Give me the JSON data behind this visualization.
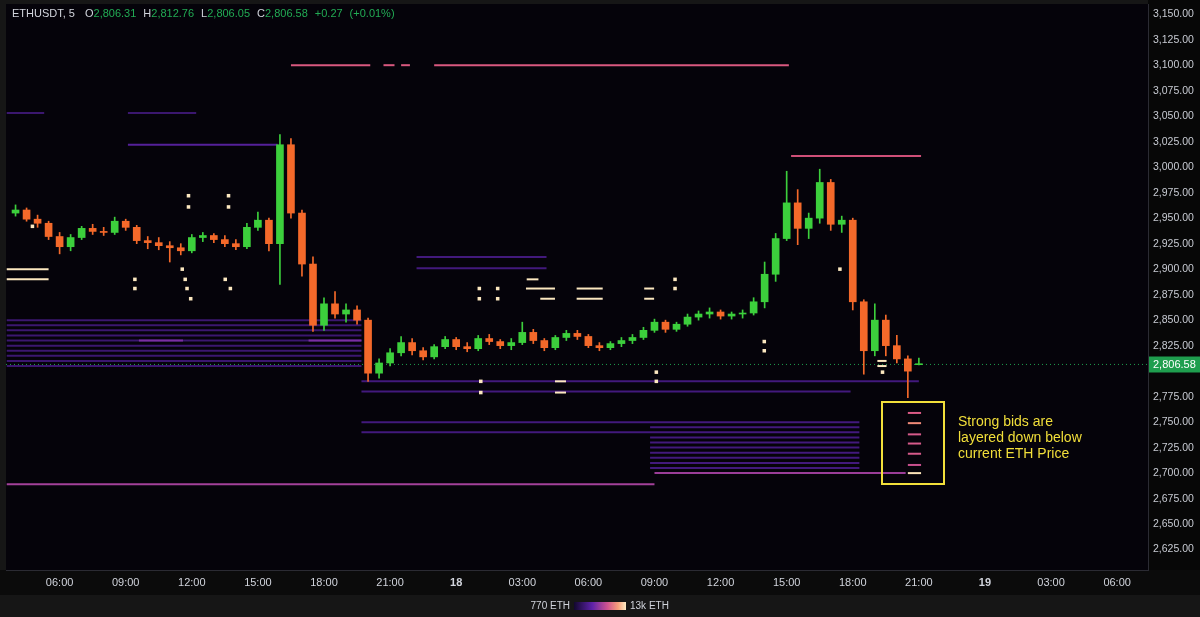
{
  "chart_data": {
    "type": "candlestick",
    "title": "ETHUSDT, 5",
    "subtitle": "O2,806.31 H2,812.76 L2,806.05 C2,806.58 +0.27 (+0.01%)",
    "x": [
      "--12-17T04:00",
      "--12-17T04:30",
      "--12-17T05:00",
      "--12-17T05:30",
      "--12-17T06:00",
      "--12-17T06:30",
      "--12-17T07:00",
      "--12-17T07:30",
      "--12-17T08:00",
      "--12-17T08:30",
      "--12-17T09:00",
      "--12-17T09:30",
      "--12-17T10:00",
      "--12-17T10:30",
      "--12-17T11:00",
      "--12-17T11:30",
      "--12-17T12:00",
      "--12-17T12:30",
      "--12-17T13:00",
      "--12-17T13:30",
      "--12-17T14:00",
      "--12-17T14:30",
      "--12-17T15:00",
      "--12-17T15:30",
      "--12-17T16:00",
      "--12-17T16:30",
      "--12-17T17:00",
      "--12-17T17:30",
      "--12-17T18:00",
      "--12-17T18:30",
      "--12-17T19:00",
      "--12-17T19:30",
      "--12-17T20:00",
      "--12-17T20:30",
      "--12-17T21:00",
      "--12-17T21:30",
      "--12-17T22:00",
      "--12-17T22:30",
      "--12-17T23:00",
      "--12-17T23:30",
      "--12-18T00:00",
      "--12-18T00:30",
      "--12-18T01:00",
      "--12-18T01:30",
      "--12-18T02:00",
      "--12-18T02:30",
      "--12-18T03:00",
      "--12-18T03:30",
      "--12-18T04:00",
      "--12-18T04:30",
      "--12-18T05:00",
      "--12-18T05:30",
      "--12-18T06:00",
      "--12-18T06:30",
      "--12-18T07:00",
      "--12-18T07:30",
      "--12-18T08:00",
      "--12-18T08:30",
      "--12-18T09:00",
      "--12-18T09:30",
      "--12-18T10:00",
      "--12-18T10:30",
      "--12-18T11:00",
      "--12-18T11:30",
      "--12-18T12:00",
      "--12-18T12:30",
      "--12-18T13:00",
      "--12-18T13:30",
      "--12-18T14:00",
      "--12-18T14:30",
      "--12-18T15:00",
      "--12-18T15:30",
      "--12-18T16:00",
      "--12-18T16:30",
      "--12-18T17:00",
      "--12-18T17:30",
      "--12-18T18:00",
      "--12-18T18:30",
      "--12-18T19:00",
      "--12-18T19:30",
      "--12-18T20:00",
      "--12-18T20:30",
      "--12-18T21:00"
    ],
    "ohlc": [
      [
        2955,
        2963,
        2952,
        2958
      ],
      [
        2958,
        2960,
        2947,
        2949
      ],
      [
        2949,
        2953,
        2941,
        2945
      ],
      [
        2945,
        2947,
        2929,
        2932
      ],
      [
        2932,
        2936,
        2915,
        2922
      ],
      [
        2922,
        2934,
        2918,
        2931
      ],
      [
        2931,
        2942,
        2929,
        2940
      ],
      [
        2940,
        2944,
        2934,
        2937
      ],
      [
        2937,
        2941,
        2933,
        2936
      ],
      [
        2936,
        2951,
        2934,
        2947
      ],
      [
        2947,
        2949,
        2938,
        2941
      ],
      [
        2941,
        2943,
        2925,
        2928
      ],
      [
        2928,
        2932,
        2920,
        2926
      ],
      [
        2926,
        2931,
        2919,
        2923
      ],
      [
        2923,
        2927,
        2907,
        2921
      ],
      [
        2921,
        2925,
        2914,
        2918
      ],
      [
        2918,
        2934,
        2916,
        2931
      ],
      [
        2931,
        2936,
        2927,
        2933
      ],
      [
        2933,
        2935,
        2926,
        2929
      ],
      [
        2929,
        2933,
        2922,
        2925
      ],
      [
        2925,
        2929,
        2919,
        2922
      ],
      [
        2922,
        2945,
        2920,
        2941
      ],
      [
        2941,
        2956,
        2938,
        2948
      ],
      [
        2948,
        2950,
        2918,
        2925
      ],
      [
        2925,
        3032,
        2885,
        3022
      ],
      [
        3022,
        3028,
        2950,
        2955
      ],
      [
        2955,
        2958,
        2893,
        2905
      ],
      [
        2905,
        2912,
        2839,
        2845
      ],
      [
        2845,
        2872,
        2840,
        2866
      ],
      [
        2866,
        2878,
        2852,
        2856
      ],
      [
        2856,
        2866,
        2848,
        2860
      ],
      [
        2860,
        2864,
        2846,
        2850
      ],
      [
        2850,
        2852,
        2790,
        2798
      ],
      [
        2798,
        2812,
        2793,
        2808
      ],
      [
        2808,
        2822,
        2805,
        2818
      ],
      [
        2818,
        2834,
        2815,
        2828
      ],
      [
        2828,
        2832,
        2816,
        2820
      ],
      [
        2820,
        2823,
        2811,
        2814
      ],
      [
        2814,
        2826,
        2812,
        2824
      ],
      [
        2824,
        2834,
        2822,
        2831
      ],
      [
        2831,
        2833,
        2821,
        2824
      ],
      [
        2824,
        2828,
        2819,
        2822
      ],
      [
        2822,
        2835,
        2820,
        2832
      ],
      [
        2832,
        2836,
        2826,
        2829
      ],
      [
        2829,
        2831,
        2822,
        2825
      ],
      [
        2825,
        2832,
        2821,
        2828
      ],
      [
        2828,
        2848,
        2826,
        2838
      ],
      [
        2838,
        2841,
        2827,
        2830
      ],
      [
        2830,
        2832,
        2820,
        2823
      ],
      [
        2823,
        2835,
        2821,
        2833
      ],
      [
        2833,
        2840,
        2830,
        2837
      ],
      [
        2837,
        2840,
        2831,
        2834
      ],
      [
        2834,
        2836,
        2823,
        2825
      ],
      [
        2825,
        2828,
        2820,
        2823
      ],
      [
        2823,
        2829,
        2821,
        2827
      ],
      [
        2827,
        2833,
        2824,
        2830
      ],
      [
        2830,
        2836,
        2827,
        2833
      ],
      [
        2833,
        2843,
        2831,
        2840
      ],
      [
        2840,
        2851,
        2838,
        2848
      ],
      [
        2848,
        2850,
        2838,
        2841
      ],
      [
        2841,
        2848,
        2839,
        2846
      ],
      [
        2846,
        2856,
        2844,
        2853
      ],
      [
        2853,
        2859,
        2850,
        2856
      ],
      [
        2856,
        2862,
        2852,
        2858
      ],
      [
        2858,
        2860,
        2851,
        2854
      ],
      [
        2854,
        2858,
        2851,
        2856
      ],
      [
        2856,
        2860,
        2852,
        2857
      ],
      [
        2857,
        2872,
        2855,
        2868
      ],
      [
        2868,
        2907,
        2862,
        2895
      ],
      [
        2895,
        2935,
        2888,
        2930
      ],
      [
        2930,
        2996,
        2928,
        2965
      ],
      [
        2965,
        2978,
        2924,
        2940
      ],
      [
        2940,
        2955,
        2930,
        2950
      ],
      [
        2950,
        2998,
        2945,
        2985
      ],
      [
        2985,
        2988,
        2938,
        2944
      ],
      [
        2944,
        2952,
        2936,
        2948
      ],
      [
        2948,
        2950,
        2860,
        2868
      ],
      [
        2868,
        2870,
        2797,
        2820
      ],
      [
        2820,
        2866,
        2815,
        2850
      ],
      [
        2850,
        2855,
        2815,
        2825
      ],
      [
        2825,
        2835,
        2808,
        2812
      ],
      [
        2812,
        2815,
        2774,
        2800
      ],
      [
        2806.31,
        2812.76,
        2806.05,
        2806.58
      ]
    ],
    "colors": [
      "#3ccf3c",
      "#f4692a",
      "#f4692a",
      "#f4692a",
      "#f4692a",
      "#3ccf3c",
      "#3ccf3c",
      "#f4692a",
      "#f4692a",
      "#3ccf3c",
      "#f4692a",
      "#f4692a",
      "#f4692a",
      "#f4692a",
      "#f4692a",
      "#f4692a",
      "#3ccf3c",
      "#3ccf3c",
      "#f4692a",
      "#f4692a",
      "#f4692a",
      "#3ccf3c",
      "#3ccf3c",
      "#f4692a",
      "#3ccf3c",
      "#f4692a",
      "#f4692a",
      "#f4692a",
      "#3ccf3c",
      "#f4692a",
      "#3ccf3c",
      "#f4692a",
      "#f4692a",
      "#3ccf3c",
      "#3ccf3c",
      "#3ccf3c",
      "#f4692a",
      "#f4692a",
      "#3ccf3c",
      "#3ccf3c",
      "#f4692a",
      "#f4692a",
      "#3ccf3c",
      "#f4692a",
      "#f4692a",
      "#3ccf3c",
      "#3ccf3c",
      "#f4692a",
      "#f4692a",
      "#3ccf3c",
      "#3ccf3c",
      "#f4692a",
      "#f4692a",
      "#f4692a",
      "#3ccf3c",
      "#3ccf3c",
      "#3ccf3c",
      "#3ccf3c",
      "#3ccf3c",
      "#f4692a",
      "#3ccf3c",
      "#3ccf3c",
      "#3ccf3c",
      "#3ccf3c",
      "#f4692a",
      "#3ccf3c",
      "#3ccf3c",
      "#3ccf3c",
      "#3ccf3c",
      "#3ccf3c",
      "#3ccf3c",
      "#f4692a",
      "#3ccf3c",
      "#3ccf3c",
      "#f4692a",
      "#3ccf3c",
      "#f4692a",
      "#f4692a",
      "#3ccf3c",
      "#f4692a",
      "#f4692a",
      "#f4692a",
      "#3ccf3c"
    ],
    "series": [
      {
        "type": "line",
        "x": [
          "--12-17T03:36",
          "--12-17T05:18"
        ],
        "values": [
          3053,
          3053
        ],
        "color": "#3b176f"
      },
      {
        "type": "line",
        "x": [
          "--12-17T09:06",
          "--12-17T12:12"
        ],
        "values": [
          3053,
          3053
        ],
        "color": "#3b176f"
      },
      {
        "type": "line",
        "x": [
          "--12-17T09:06",
          "--12-17T15:54"
        ],
        "values": [
          3022,
          3022
        ],
        "color": "#55209a"
      },
      {
        "type": "line",
        "x": [
          "--12-17T03:36",
          "--12-17T19:42"
        ],
        "values": [
          2850,
          2850
        ],
        "color": "#3b176f"
      },
      {
        "type": "line",
        "x": [
          "--12-17T03:36",
          "--12-17T19:42"
        ],
        "values": [
          2845,
          2845
        ],
        "color": "#3b176f"
      },
      {
        "type": "line",
        "x": [
          "--12-17T03:36",
          "--12-17T19:42"
        ],
        "values": [
          2840,
          2840
        ],
        "color": "#3b176f"
      },
      {
        "type": "line",
        "x": [
          "--12-17T03:36",
          "--12-17T19:42"
        ],
        "values": [
          2835,
          2835
        ],
        "color": "#3b176f"
      },
      {
        "type": "line",
        "x": [
          "--12-17T03:36",
          "--12-17T19:42"
        ],
        "values": [
          2830,
          2830
        ],
        "color": "#3b176f"
      },
      {
        "type": "line",
        "x": [
          "--12-17T03:36",
          "--12-17T19:42"
        ],
        "values": [
          2825,
          2825
        ],
        "color": "#3b176f"
      },
      {
        "type": "line",
        "x": [
          "--12-17T03:36",
          "--12-17T19:42"
        ],
        "values": [
          2820,
          2820
        ],
        "color": "#3b176f"
      },
      {
        "type": "line",
        "x": [
          "--12-17T03:36",
          "--12-17T19:42"
        ],
        "values": [
          2815,
          2815
        ],
        "color": "#3b176f"
      },
      {
        "type": "line",
        "x": [
          "--12-17T03:36",
          "--12-17T19:42"
        ],
        "values": [
          2810,
          2810
        ],
        "color": "#3b176f"
      },
      {
        "type": "line",
        "x": [
          "--12-17T03:36",
          "--12-17T19:42"
        ],
        "values": [
          2805,
          2805
        ],
        "color": "#3b176f"
      },
      {
        "type": "line",
        "x": [
          "--12-17T09:36",
          "--12-17T11:36"
        ],
        "values": [
          2830,
          2830
        ],
        "color": "#7b2fa1"
      },
      {
        "type": "line",
        "x": [
          "--12-17T17:18",
          "--12-17T19:42"
        ],
        "values": [
          2830,
          2830
        ],
        "color": "#7b2fa1"
      },
      {
        "type": "line",
        "x": [
          "--12-17T22:12",
          "--12-18T04:06"
        ],
        "values": [
          2912,
          2912
        ],
        "color": "#42197c"
      },
      {
        "type": "line",
        "x": [
          "--12-17T22:12",
          "--12-18T04:06"
        ],
        "values": [
          2901,
          2901
        ],
        "color": "#42197c"
      },
      {
        "type": "line",
        "x": [
          "--12-17T19:42",
          "--12-18T21:00"
        ],
        "values": [
          2790,
          2790
        ],
        "color": "#42197c"
      },
      {
        "type": "line",
        "x": [
          "--12-17T19:42",
          "--12-18T17:54"
        ],
        "values": [
          2780,
          2780
        ],
        "color": "#42197c"
      },
      {
        "type": "line",
        "x": [
          "--12-17T19:42",
          "--12-18T18:18"
        ],
        "values": [
          2750,
          2750
        ],
        "color": "#42197c"
      },
      {
        "type": "line",
        "x": [
          "--12-18T08:48",
          "--12-18T18:18"
        ],
        "values": [
          2745,
          2745
        ],
        "color": "#42197c"
      },
      {
        "type": "line",
        "x": [
          "--12-17T19:42",
          "--12-18T18:18"
        ],
        "values": [
          2740,
          2740
        ],
        "color": "#42197c"
      },
      {
        "type": "line",
        "x": [
          "--12-18T08:48",
          "--12-18T18:18"
        ],
        "values": [
          2735,
          2735
        ],
        "color": "#42197c"
      },
      {
        "type": "line",
        "x": [
          "--12-18T08:48",
          "--12-18T18:18"
        ],
        "values": [
          2730,
          2730
        ],
        "color": "#42197c"
      },
      {
        "type": "line",
        "x": [
          "--12-18T08:48",
          "--12-18T18:18"
        ],
        "values": [
          2725,
          2725
        ],
        "color": "#42197c"
      },
      {
        "type": "line",
        "x": [
          "--12-18T08:48",
          "--12-18T18:18"
        ],
        "values": [
          2720,
          2720
        ],
        "color": "#42197c"
      },
      {
        "type": "line",
        "x": [
          "--12-18T08:48",
          "--12-18T18:18"
        ],
        "values": [
          2715,
          2715
        ],
        "color": "#42197c"
      },
      {
        "type": "line",
        "x": [
          "--12-18T08:48",
          "--12-18T18:18"
        ],
        "values": [
          2710,
          2710
        ],
        "color": "#42197c"
      },
      {
        "type": "line",
        "x": [
          "--12-18T08:48",
          "--12-18T18:18"
        ],
        "values": [
          2705,
          2705
        ],
        "color": "#42197c"
      },
      {
        "type": "line",
        "x": [
          "--12-17T03:36",
          "--12-18T09:00"
        ],
        "values": [
          2689,
          2689
        ],
        "color": "#a3419a"
      },
      {
        "type": "line",
        "x": [
          "--12-18T09:00",
          "--12-18T20:24"
        ],
        "values": [
          2700,
          2700
        ],
        "color": "#9b3d98"
      },
      {
        "type": "line",
        "x": [
          "--12-17T16:30",
          "--12-17T20:06"
        ],
        "values": [
          3100,
          3100
        ],
        "color": "#d9587f"
      },
      {
        "type": "line",
        "x": [
          "--12-17T20:42",
          "--12-17T21:12"
        ],
        "values": [
          3100,
          3100
        ],
        "color": "#d9587f"
      },
      {
        "type": "line",
        "x": [
          "--12-17T21:30",
          "--12-17T21:54"
        ],
        "values": [
          3100,
          3100
        ],
        "color": "#d9587f"
      },
      {
        "type": "line",
        "x": [
          "--12-17T23:00",
          "--12-18T15:06"
        ],
        "values": [
          3100,
          3100
        ],
        "color": "#d9587f"
      },
      {
        "type": "line",
        "x": [
          "--12-18T15:12",
          "--12-18T21:06"
        ],
        "values": [
          3011,
          3011
        ],
        "color": "#cf4f78"
      },
      {
        "type": "line",
        "x": [
          "--12-18T20:30",
          "--12-18T21:06"
        ],
        "values": [
          2759,
          2759
        ],
        "color": "#db5a86"
      },
      {
        "type": "line",
        "x": [
          "--12-18T20:30",
          "--12-18T21:06"
        ],
        "values": [
          2749,
          2749
        ],
        "color": "#f08a78"
      },
      {
        "type": "line",
        "x": [
          "--12-18T20:30",
          "--12-18T21:06"
        ],
        "values": [
          2738,
          2738
        ],
        "color": "#d65a8a"
      },
      {
        "type": "line",
        "x": [
          "--12-18T20:30",
          "--12-18T21:06"
        ],
        "values": [
          2729,
          2729
        ],
        "color": "#d65a8a"
      },
      {
        "type": "line",
        "x": [
          "--12-18T20:30",
          "--12-18T21:06"
        ],
        "values": [
          2719,
          2719
        ],
        "color": "#d65a8a"
      },
      {
        "type": "line",
        "x": [
          "--12-18T20:30",
          "--12-18T21:06"
        ],
        "values": [
          2708,
          2708
        ],
        "color": "#c8508e"
      },
      {
        "type": "line",
        "x": [
          "--12-18T20:30",
          "--12-18T21:06"
        ],
        "values": [
          2700,
          2700
        ],
        "color": "#fbe3b8"
      },
      {
        "type": "line",
        "x": [
          "--12-17T03:36",
          "--12-17T05:30"
        ],
        "values": [
          2900,
          2900
        ],
        "color": "#fce8c0"
      },
      {
        "type": "line",
        "x": [
          "--12-17T03:36",
          "--12-17T05:30"
        ],
        "values": [
          2890,
          2890
        ],
        "color": "#fce8c0"
      },
      {
        "type": "line",
        "x": [
          "--12-18T03:12",
          "--12-18T03:44"
        ],
        "values": [
          2890,
          2890
        ],
        "color": "#fce8c0"
      },
      {
        "type": "line",
        "x": [
          "--12-18T03:10",
          "--12-18T04:29"
        ],
        "values": [
          2881,
          2881
        ],
        "color": "#fce8c0"
      },
      {
        "type": "line",
        "x": [
          "--12-18T05:28",
          "--12-18T06:39"
        ],
        "values": [
          2881,
          2881
        ],
        "color": "#fce8c0"
      },
      {
        "type": "line",
        "x": [
          "--12-18T08:32",
          "--12-18T08:59"
        ],
        "values": [
          2881,
          2881
        ],
        "color": "#fce8c0"
      },
      {
        "type": "line",
        "x": [
          "--12-18T03:49",
          "--12-18T04:29"
        ],
        "values": [
          2871,
          2871
        ],
        "color": "#fce8c0"
      },
      {
        "type": "line",
        "x": [
          "--12-18T05:28",
          "--12-18T06:39"
        ],
        "values": [
          2871,
          2871
        ],
        "color": "#fce8c0"
      },
      {
        "type": "line",
        "x": [
          "--12-18T08:32",
          "--12-18T08:59"
        ],
        "values": [
          2871,
          2871
        ],
        "color": "#fce8c0"
      },
      {
        "type": "line",
        "x": [
          "--12-18T04:29",
          "--12-18T04:59"
        ],
        "values": [
          2790,
          2790
        ],
        "color": "#fce8c0"
      },
      {
        "type": "line",
        "x": [
          "--12-18T04:29",
          "--12-18T04:59"
        ],
        "values": [
          2779,
          2779
        ],
        "color": "#fce8c0"
      },
      {
        "type": "line",
        "x": [
          "--12-18T19:07",
          "--12-18T19:32"
        ],
        "values": [
          2810,
          2810
        ],
        "color": "#fce8c0"
      },
      {
        "type": "line",
        "x": [
          "--12-18T19:07",
          "--12-18T19:32"
        ],
        "values": [
          2805,
          2805
        ],
        "color": "#fce8c0"
      },
      {
        "type": "scatter",
        "marker": "square",
        "color": "#fce8c0",
        "x": [
          "--12-17T04:46",
          "--12-17T09:25",
          "--12-17T09:25",
          "--12-17T11:34",
          "--12-17T11:42",
          "--12-17T11:47",
          "--12-17T11:51",
          "--12-17T11:51",
          "--12-17T11:57",
          "--12-17T13:31",
          "--12-17T13:40",
          "--12-17T13:40",
          "--12-17T13:45",
          "--12-18T01:03",
          "--12-18T01:03",
          "--12-18T01:07",
          "--12-18T01:07",
          "--12-18T01:53",
          "--12-18T01:53",
          "--12-18T09:05",
          "--12-18T09:05",
          "--12-18T09:56",
          "--12-18T09:56",
          "--12-18T13:59",
          "--12-18T13:59",
          "--12-18T17:25",
          "--12-18T19:21"
        ],
        "values": [
          2942,
          2890,
          2881,
          2900,
          2890,
          2881,
          2972,
          2961,
          2871,
          2890,
          2972,
          2961,
          2881,
          2881,
          2871,
          2790,
          2779,
          2881,
          2871,
          2799,
          2790,
          2890,
          2881,
          2829,
          2820,
          2900,
          2799
        ]
      }
    ],
    "xlim": [
      "--12-17T03:34",
      "--12-19T07:24"
    ],
    "xticks": [
      {
        "value": "--12-17T06:00",
        "label": "06:00"
      },
      {
        "value": "--12-17T09:00",
        "label": "09:00"
      },
      {
        "value": "--12-17T12:00",
        "label": "12:00"
      },
      {
        "value": "--12-17T15:00",
        "label": "15:00"
      },
      {
        "value": "--12-17T18:00",
        "label": "18:00"
      },
      {
        "value": "--12-17T21:00",
        "label": "21:00"
      },
      {
        "value": "--12-18T00:00",
        "label": "18"
      },
      {
        "value": "--12-18T03:00",
        "label": "03:00"
      },
      {
        "value": "--12-18T06:00",
        "label": "06:00"
      },
      {
        "value": "--12-18T09:00",
        "label": "09:00"
      },
      {
        "value": "--12-18T12:00",
        "label": "12:00"
      },
      {
        "value": "--12-18T15:00",
        "label": "15:00"
      },
      {
        "value": "--12-18T18:00",
        "label": "18:00"
      },
      {
        "value": "--12-18T21:00",
        "label": "21:00"
      },
      {
        "value": "--12-19T00:00",
        "label": "19"
      },
      {
        "value": "--12-19T03:00",
        "label": "03:00"
      },
      {
        "value": "--12-19T06:00",
        "label": "06:00"
      }
    ],
    "ylim": [
      2605,
      3160
    ],
    "yticks": [
      {
        "value": 2625,
        "label": "2,625.00"
      },
      {
        "value": 2650,
        "label": "2,650.00"
      },
      {
        "value": 2675,
        "label": "2,675.00"
      },
      {
        "value": 2700,
        "label": "2,700.00"
      },
      {
        "value": 2725,
        "label": "2,725.00"
      },
      {
        "value": 2750,
        "label": "2,750.00"
      },
      {
        "value": 2775,
        "label": "2,775.00"
      },
      {
        "value": 2825,
        "label": "2,825.00"
      },
      {
        "value": 2850,
        "label": "2,850.00"
      },
      {
        "value": 2875,
        "label": "2,875.00"
      },
      {
        "value": 2900,
        "label": "2,900.00"
      },
      {
        "value": 2925,
        "label": "2,925.00"
      },
      {
        "value": 2950,
        "label": "2,950.00"
      },
      {
        "value": 2975,
        "label": "2,975.00"
      },
      {
        "value": 3000,
        "label": "3,000.00"
      },
      {
        "value": 3025,
        "label": "3,025.00"
      },
      {
        "value": 3050,
        "label": "3,050.00"
      },
      {
        "value": 3075,
        "label": "3,075.00"
      },
      {
        "value": 3100,
        "label": "3,100.00"
      },
      {
        "value": 3125,
        "label": "3,125.00"
      },
      {
        "value": 3150,
        "label": "3,150.00"
      }
    ],
    "ref_lines": [
      {
        "axis": "y",
        "value": 2806.58,
        "label": "2,806.58",
        "color": "#1f9e4e",
        "line_style": "dotted"
      }
    ],
    "annotations": [
      "Strong bids are layered down below current ETH Price",
      "770 ETH",
      "13k ETH"
    ]
  }
}
